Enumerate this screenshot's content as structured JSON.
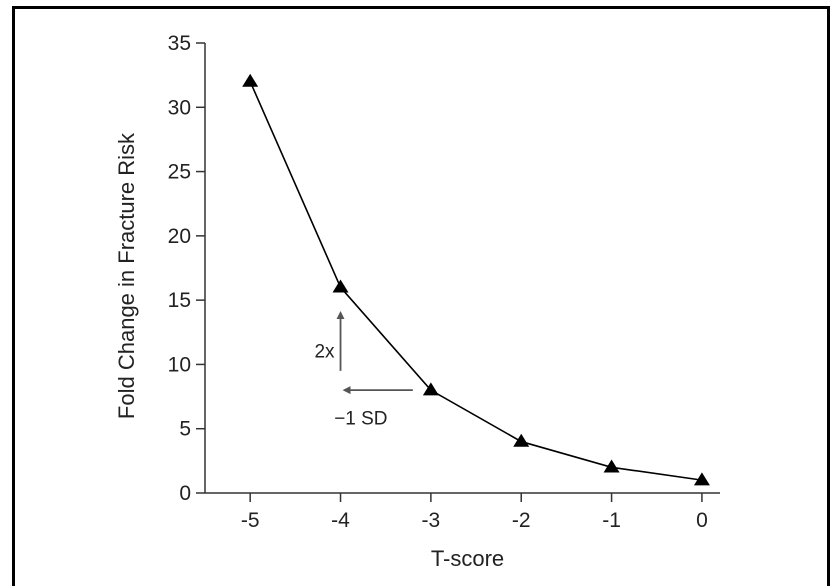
{
  "chart_data": {
    "type": "line",
    "title": "",
    "xlabel": "T-score",
    "ylabel": "Fold Change in Fracture Risk",
    "x": [
      -5,
      -4,
      -3,
      -2,
      -1,
      0
    ],
    "series": [
      {
        "values": [
          32,
          16,
          8,
          4,
          2,
          1
        ]
      }
    ],
    "xlim": [
      -5.5,
      0.2
    ],
    "ylim": [
      0,
      35
    ],
    "x_ticks": [
      -5,
      -4,
      -3,
      -2,
      -1,
      0
    ],
    "y_ticks": [
      0,
      5,
      10,
      15,
      20,
      25,
      30,
      35
    ],
    "marker": "triangle",
    "grid": false,
    "legend": "none",
    "annotations": [
      {
        "text": "2x",
        "arrow": "up",
        "x": -4,
        "y_from": 9.5,
        "y_to": 14
      },
      {
        "text": "−1  SD",
        "arrow": "left",
        "y": 8,
        "x_from": -3.2,
        "x_to": -4
      }
    ],
    "colors": {
      "line": "#000000",
      "marker": "#000000",
      "axis": "#333333",
      "arrow": "#555555"
    }
  }
}
